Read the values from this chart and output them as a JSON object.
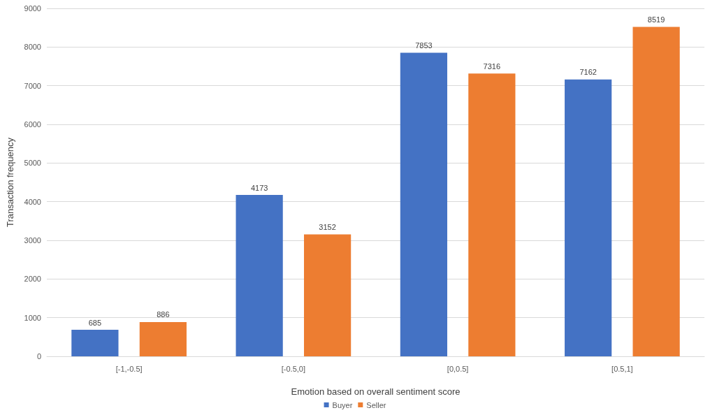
{
  "chart_data": {
    "type": "bar",
    "xlabel": "Emotion based on overall sentiment score",
    "ylabel": "Transaction frequency",
    "categories": [
      "[-1,-0.5]",
      "[-0.5,0]",
      "[0,0.5]",
      "[0.5,1]"
    ],
    "series": [
      {
        "name": "Buyer",
        "color": "#4472c4",
        "values": [
          685,
          4173,
          7853,
          7162
        ]
      },
      {
        "name": "Seller",
        "color": "#ed7d31",
        "values": [
          886,
          3152,
          7316,
          8519
        ]
      }
    ],
    "ylim": [
      0,
      9000
    ],
    "yticks": [
      0,
      1000,
      2000,
      3000,
      4000,
      5000,
      6000,
      7000,
      8000,
      9000
    ],
    "grid": "y",
    "legend": "bottom",
    "data_labels": true
  }
}
